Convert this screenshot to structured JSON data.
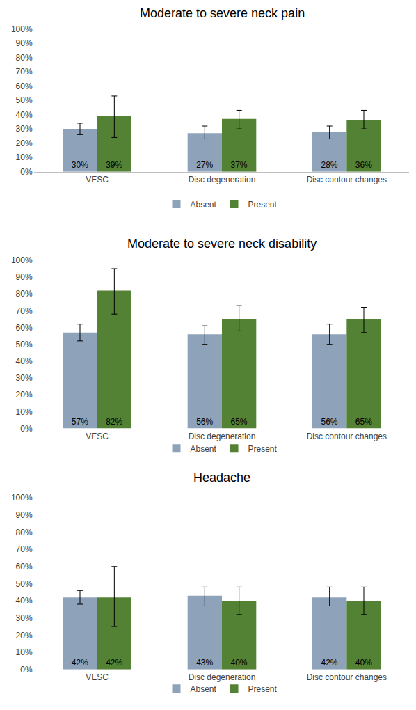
{
  "chart_data": [
    {
      "type": "bar",
      "title": "Moderate to severe neck pain",
      "categories": [
        "VESC",
        "Disc degeneration",
        "Disc contour changes"
      ],
      "series": [
        {
          "name": "Absent",
          "color": "#8EA2BA",
          "values": [
            30,
            27,
            28
          ],
          "value_labels": [
            "30%",
            "27%",
            "28%"
          ],
          "ci_low": [
            26,
            23,
            23
          ],
          "ci_high": [
            34,
            32,
            32
          ]
        },
        {
          "name": "Present",
          "color": "#548235",
          "values": [
            39,
            37,
            36
          ],
          "value_labels": [
            "39%",
            "37%",
            "36%"
          ],
          "ci_low": [
            24,
            30,
            30
          ],
          "ci_high": [
            53,
            43,
            43
          ]
        }
      ],
      "ylim": [
        0,
        100
      ],
      "yticks": [
        {
          "value": 0,
          "label": "0%"
        },
        {
          "value": 10,
          "label": "10%"
        },
        {
          "value": 20,
          "label": "20%"
        },
        {
          "value": 30,
          "label": "30%"
        },
        {
          "value": 40,
          "label": "40%"
        },
        {
          "value": 50,
          "label": "50%"
        },
        {
          "value": 60,
          "label": "60%"
        },
        {
          "value": 70,
          "label": "70%"
        },
        {
          "value": 80,
          "label": "80%"
        },
        {
          "value": 90,
          "label": "90%"
        },
        {
          "value": 100,
          "label": "100%"
        }
      ],
      "grid": false,
      "legend": "bottom",
      "data_labels": true
    },
    {
      "type": "bar",
      "title": "Moderate to severe neck disability",
      "categories": [
        "VESC",
        "Disc degeneration",
        "Disc contour changes"
      ],
      "series": [
        {
          "name": "Absent",
          "color": "#8EA2BA",
          "values": [
            57,
            56,
            56
          ],
          "value_labels": [
            "57%",
            "56%",
            "56%"
          ],
          "ci_low": [
            52,
            50,
            50
          ],
          "ci_high": [
            62,
            61,
            62
          ]
        },
        {
          "name": "Present",
          "color": "#548235",
          "values": [
            82,
            65,
            65
          ],
          "value_labels": [
            "82%",
            "65%",
            "65%"
          ],
          "ci_low": [
            68,
            58,
            57
          ],
          "ci_high": [
            95,
            73,
            72
          ]
        }
      ],
      "ylim": [
        0,
        100
      ],
      "yticks": [
        {
          "value": 0,
          "label": "0%"
        },
        {
          "value": 10,
          "label": "10%"
        },
        {
          "value": 20,
          "label": "20%"
        },
        {
          "value": 30,
          "label": "30%"
        },
        {
          "value": 40,
          "label": "40%"
        },
        {
          "value": 50,
          "label": "50%"
        },
        {
          "value": 60,
          "label": "60%"
        },
        {
          "value": 70,
          "label": "70%"
        },
        {
          "value": 80,
          "label": "80%"
        },
        {
          "value": 90,
          "label": "90%"
        },
        {
          "value": 100,
          "label": "100%"
        }
      ],
      "grid": false,
      "legend": "bottom",
      "data_labels": true
    },
    {
      "type": "bar",
      "title": "Headache",
      "categories": [
        "VESC",
        "Disc degeneration",
        "Disc contour changes"
      ],
      "series": [
        {
          "name": "Absent",
          "color": "#8EA2BA",
          "values": [
            42,
            43,
            42
          ],
          "value_labels": [
            "42%",
            "43%",
            "42%"
          ],
          "ci_low": [
            38,
            37,
            37
          ],
          "ci_high": [
            46,
            48,
            48
          ]
        },
        {
          "name": "Present",
          "color": "#548235",
          "values": [
            42,
            40,
            40
          ],
          "value_labels": [
            "42%",
            "40%",
            "40%"
          ],
          "ci_low": [
            25,
            32,
            32
          ],
          "ci_high": [
            60,
            48,
            48
          ]
        }
      ],
      "ylim": [
        0,
        100
      ],
      "yticks": [
        {
          "value": 0,
          "label": "0%"
        },
        {
          "value": 10,
          "label": "10%"
        },
        {
          "value": 20,
          "label": "20%"
        },
        {
          "value": 30,
          "label": "30%"
        },
        {
          "value": 40,
          "label": "40%"
        },
        {
          "value": 50,
          "label": "50%"
        },
        {
          "value": 60,
          "label": "60%"
        },
        {
          "value": 70,
          "label": "70%"
        },
        {
          "value": 80,
          "label": "80%"
        },
        {
          "value": 90,
          "label": "90%"
        },
        {
          "value": 100,
          "label": "100%"
        }
      ],
      "grid": false,
      "legend": "bottom",
      "data_labels": true
    }
  ]
}
